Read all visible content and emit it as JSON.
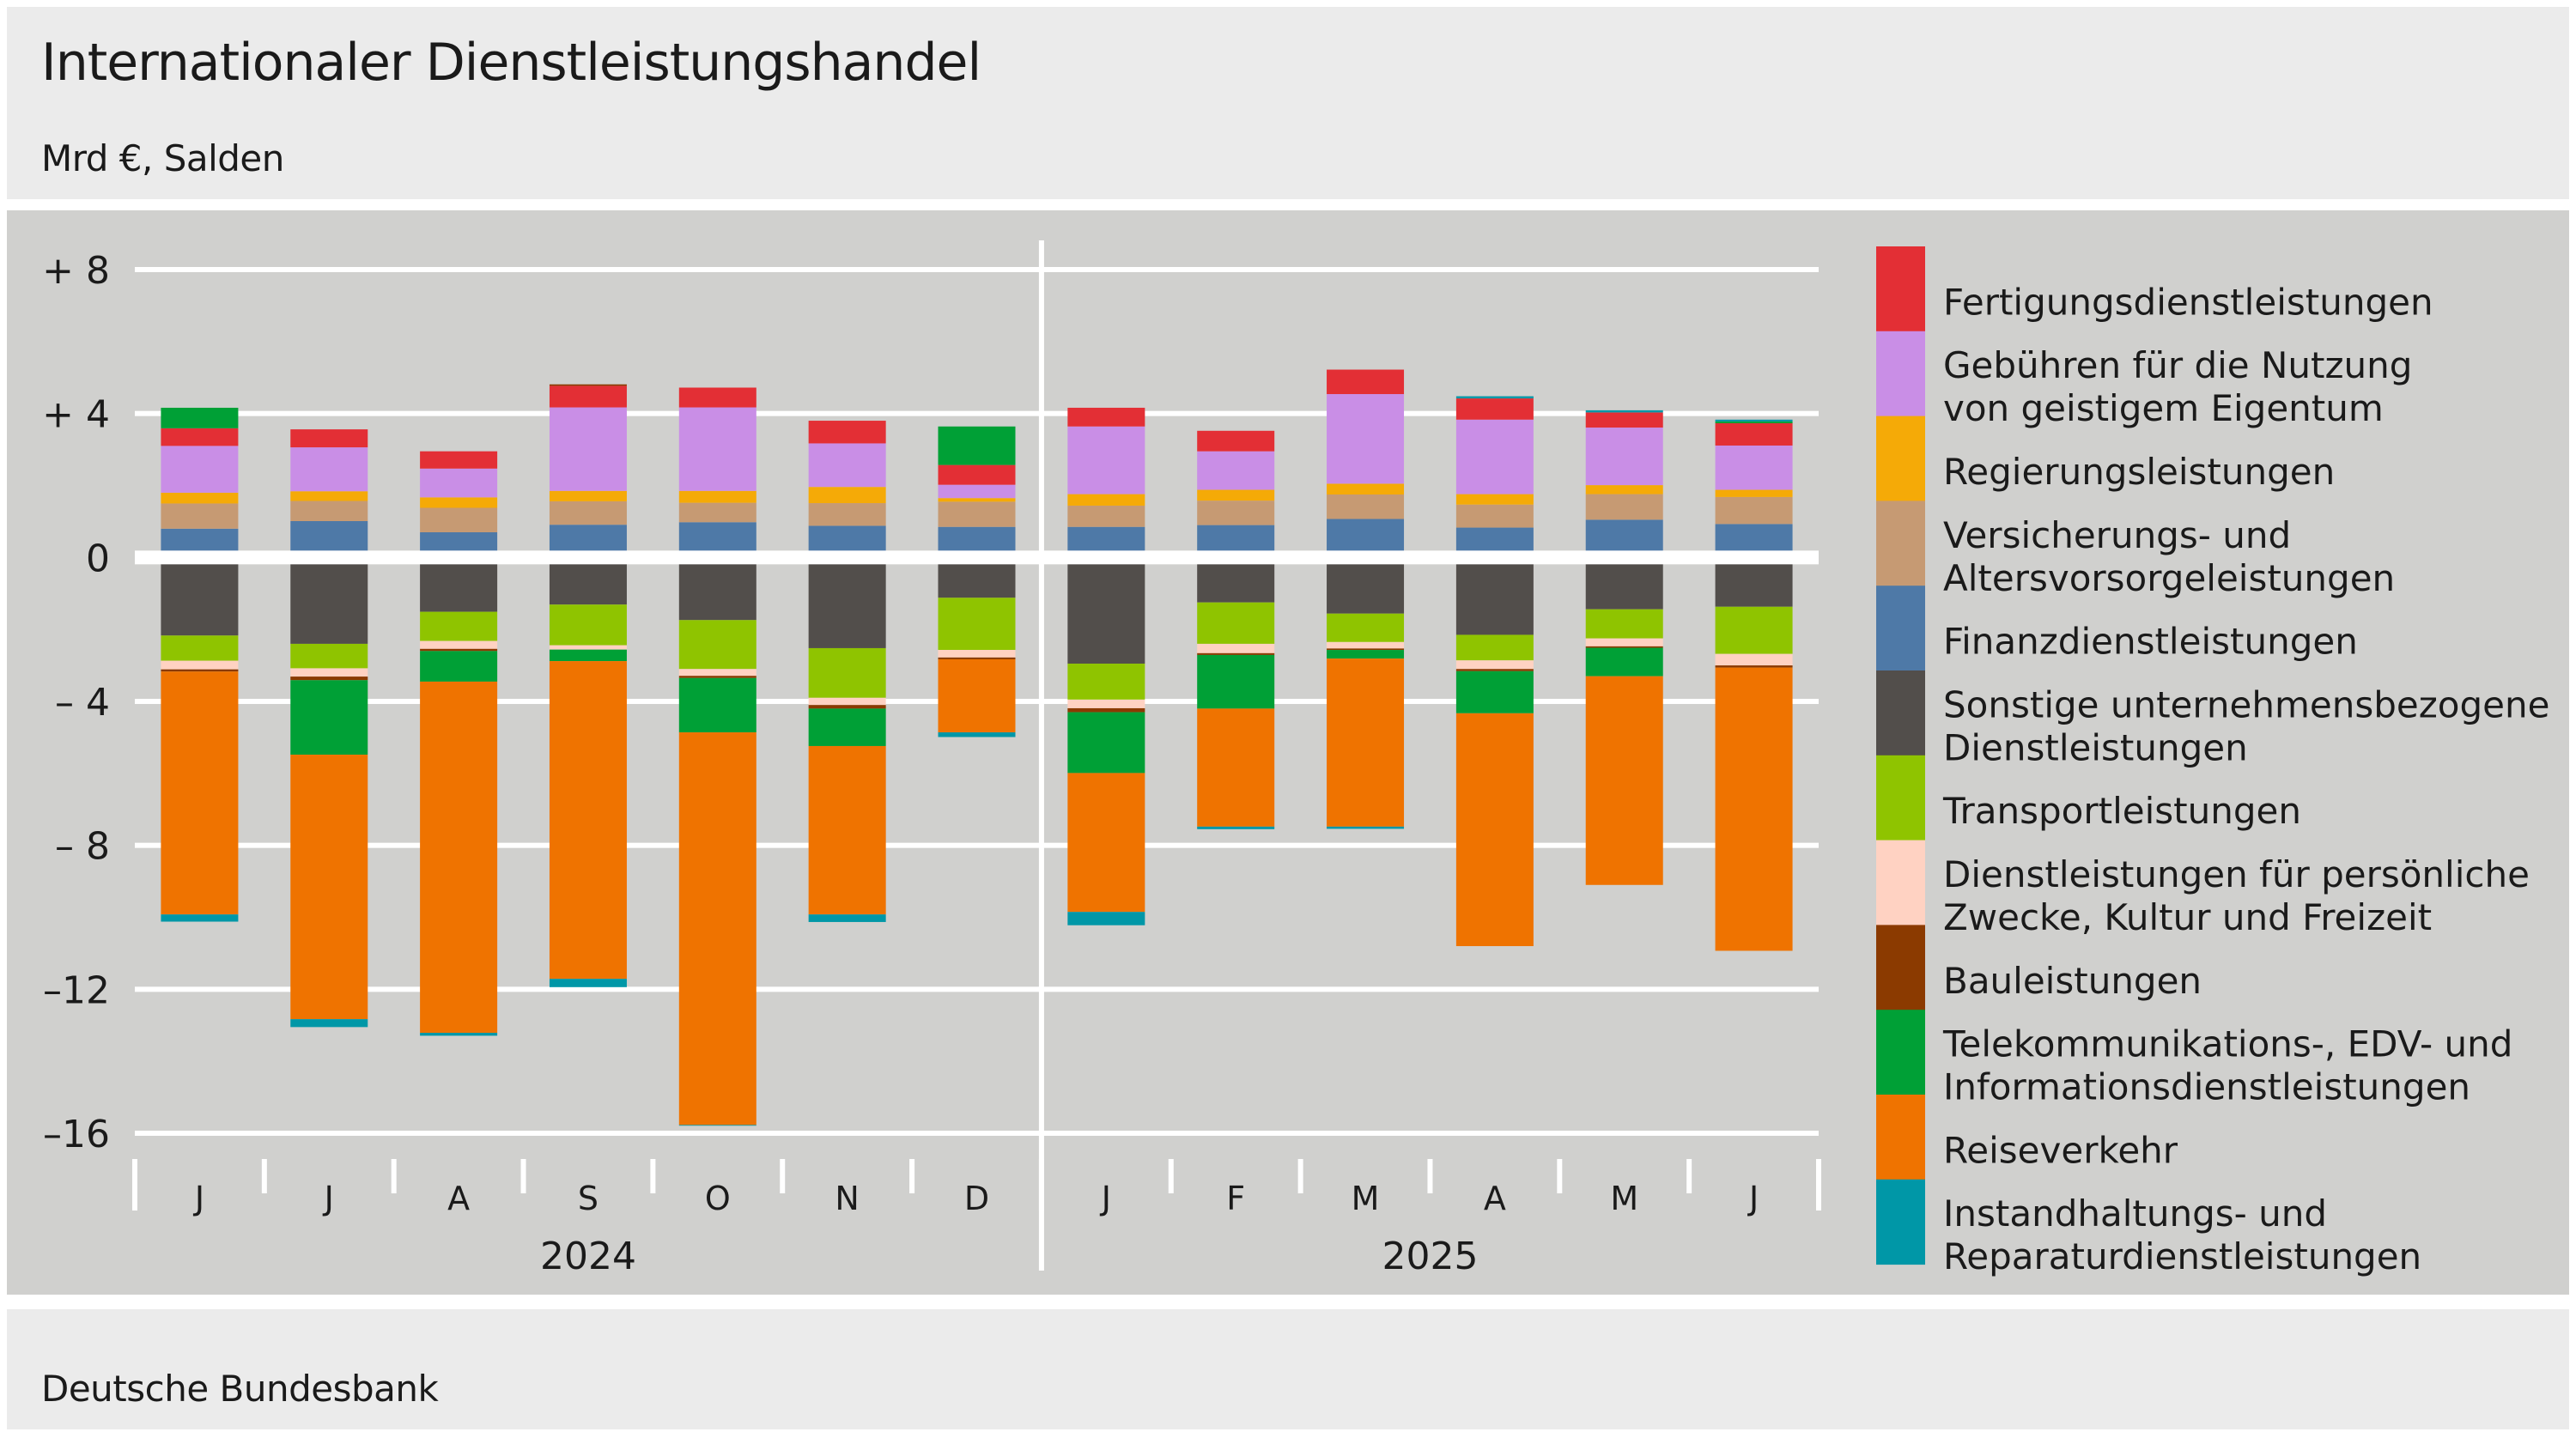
{
  "header": {
    "title": "Internationaler Dienstleistungshandel",
    "subtitle": "Mrd €, Salden"
  },
  "footer": {
    "source": "Deutsche Bundesbank"
  },
  "chart_data": {
    "type": "bar",
    "stacked": true,
    "title": "Internationaler Dienstleistungshandel",
    "subtitle": "Mrd €, Salden",
    "xlabel": "",
    "ylabel": "",
    "ylim": [
      -16,
      8
    ],
    "yticks": [
      8,
      4,
      0,
      -4,
      -8,
      -12,
      -16
    ],
    "ytick_labels": [
      "+ 8",
      "+ 4",
      "0",
      "– 4",
      "– 8",
      "–12",
      "–16"
    ],
    "grid": true,
    "legend_position": "right",
    "categories": [
      "J",
      "J",
      "A",
      "S",
      "O",
      "N",
      "D",
      "J",
      "F",
      "M",
      "A",
      "M",
      "J"
    ],
    "category_periods": [
      "2024-06",
      "2024-07",
      "2024-08",
      "2024-09",
      "2024-10",
      "2024-11",
      "2024-12",
      "2025-01",
      "2025-02",
      "2025-03",
      "2025-04",
      "2025-05",
      "2025-06"
    ],
    "year_groups": [
      {
        "label": "2024",
        "count": 7
      },
      {
        "label": "2025",
        "count": 6
      }
    ],
    "series": [
      {
        "name": "Finanzdienstleistungen",
        "color": "#4e79a7",
        "values": [
          0.8,
          1.01,
          0.7,
          0.91,
          0.98,
          0.88,
          0.85,
          0.85,
          0.9,
          1.07,
          0.83,
          1.05,
          0.93
        ]
      },
      {
        "name": "Versicherungs- und Altersvorsorgeleistungen",
        "color": "#c69a73",
        "values": [
          0.7,
          0.56,
          0.68,
          0.65,
          0.54,
          0.63,
          0.7,
          0.59,
          0.68,
          0.68,
          0.64,
          0.71,
          0.75
        ]
      },
      {
        "name": "Regierungsleistungen",
        "color": "#f5aa07",
        "values": [
          0.3,
          0.27,
          0.29,
          0.29,
          0.33,
          0.45,
          0.1,
          0.32,
          0.3,
          0.3,
          0.29,
          0.25,
          0.2
        ]
      },
      {
        "name": "Gebühren für die Nutzung von geistigem Eigentum",
        "color": "#c98ee6",
        "values": [
          1.3,
          1.22,
          0.8,
          2.32,
          2.32,
          1.21,
          0.37,
          1.88,
          1.07,
          2.49,
          2.07,
          1.6,
          1.23
        ]
      },
      {
        "name": "Fertigungsdienstleistungen",
        "color": "#e32f35",
        "values": [
          0.49,
          0.5,
          0.48,
          0.6,
          0.55,
          0.63,
          0.55,
          0.52,
          0.57,
          0.68,
          0.59,
          0.42,
          0.62
        ]
      },
      {
        "name": "Sonstige unternehmensbezogene Dienstleistungen",
        "color": "#524e4b",
        "values": [
          -2.17,
          -2.4,
          -1.51,
          -1.31,
          -1.74,
          -2.52,
          -1.12,
          -2.95,
          -1.25,
          -1.56,
          -2.15,
          -1.44,
          -1.37
        ]
      },
      {
        "name": "Transportleistungen",
        "color": "#8fc400",
        "values": [
          -0.7,
          -0.68,
          -0.81,
          -1.13,
          -1.36,
          -1.38,
          -1.45,
          -1.0,
          -1.15,
          -0.79,
          -0.71,
          -0.81,
          -1.31
        ]
      },
      {
        "name": "Dienstleistungen für persönliche Zwecke, Kultur und Freizeit",
        "color": "#ffd2c2",
        "values": [
          -0.24,
          -0.23,
          -0.22,
          -0.12,
          -0.19,
          -0.2,
          -0.21,
          -0.24,
          -0.26,
          -0.18,
          -0.24,
          -0.22,
          -0.32
        ]
      },
      {
        "name": "Bauleistungen",
        "color": "#8b3a00",
        "values": [
          -0.06,
          -0.1,
          -0.06,
          0.04,
          -0.06,
          -0.1,
          -0.05,
          -0.11,
          -0.05,
          -0.04,
          -0.06,
          -0.04,
          -0.06
        ]
      },
      {
        "name": "Telekommunikations-, EDV- und Informationsdienstleistungen",
        "color": "#00a036",
        "values": [
          0.57,
          -2.07,
          -0.85,
          -0.32,
          -1.51,
          -1.04,
          1.07,
          -1.69,
          -1.49,
          -0.24,
          -1.17,
          -0.79,
          0.05
        ]
      },
      {
        "name": "Reiseverkehr",
        "color": "#ef7300",
        "values": [
          -6.75,
          -7.35,
          -9.76,
          -8.83,
          -10.91,
          -4.68,
          -2.03,
          -3.86,
          -3.28,
          -4.67,
          -6.47,
          -5.8,
          -7.87
        ]
      },
      {
        "name": "Instandhaltungs- und Reparaturdienstleistungen",
        "color": "#0097a7",
        "values": [
          -0.2,
          -0.22,
          -0.08,
          -0.23,
          -0.02,
          -0.21,
          -0.13,
          -0.37,
          -0.07,
          -0.06,
          0.06,
          0.06,
          0.05
        ]
      }
    ],
    "legend": [
      {
        "lines": [
          "Fertigungsdienstleistungen"
        ],
        "color": "#e32f35"
      },
      {
        "lines": [
          "Gebühren für die Nutzung",
          "von geistigem Eigentum"
        ],
        "color": "#c98ee6"
      },
      {
        "lines": [
          "Regierungsleistungen"
        ],
        "color": "#f5aa07"
      },
      {
        "lines": [
          "Versicherungs- und",
          "Altersvorsorgeleistungen"
        ],
        "color": "#c69a73"
      },
      {
        "lines": [
          "Finanzdienstleistungen"
        ],
        "color": "#4e79a7"
      },
      {
        "lines": [
          "Sonstige unternehmensbezogene",
          "Dienstleistungen"
        ],
        "color": "#524e4b"
      },
      {
        "lines": [
          "Transportleistungen"
        ],
        "color": "#8fc400"
      },
      {
        "lines": [
          "Dienstleistungen für persönliche",
          "Zwecke, Kultur und Freizeit"
        ],
        "color": "#ffd2c2"
      },
      {
        "lines": [
          "Bauleistungen"
        ],
        "color": "#8b3a00"
      },
      {
        "lines": [
          "Telekommunikations-, EDV- und",
          "Informationsdienstleistungen"
        ],
        "color": "#00a036"
      },
      {
        "lines": [
          "Reiseverkehr"
        ],
        "color": "#ef7300"
      },
      {
        "lines": [
          "Instandhaltungs- und",
          "Reparaturdienstleistungen"
        ],
        "color": "#0097a7"
      }
    ]
  }
}
